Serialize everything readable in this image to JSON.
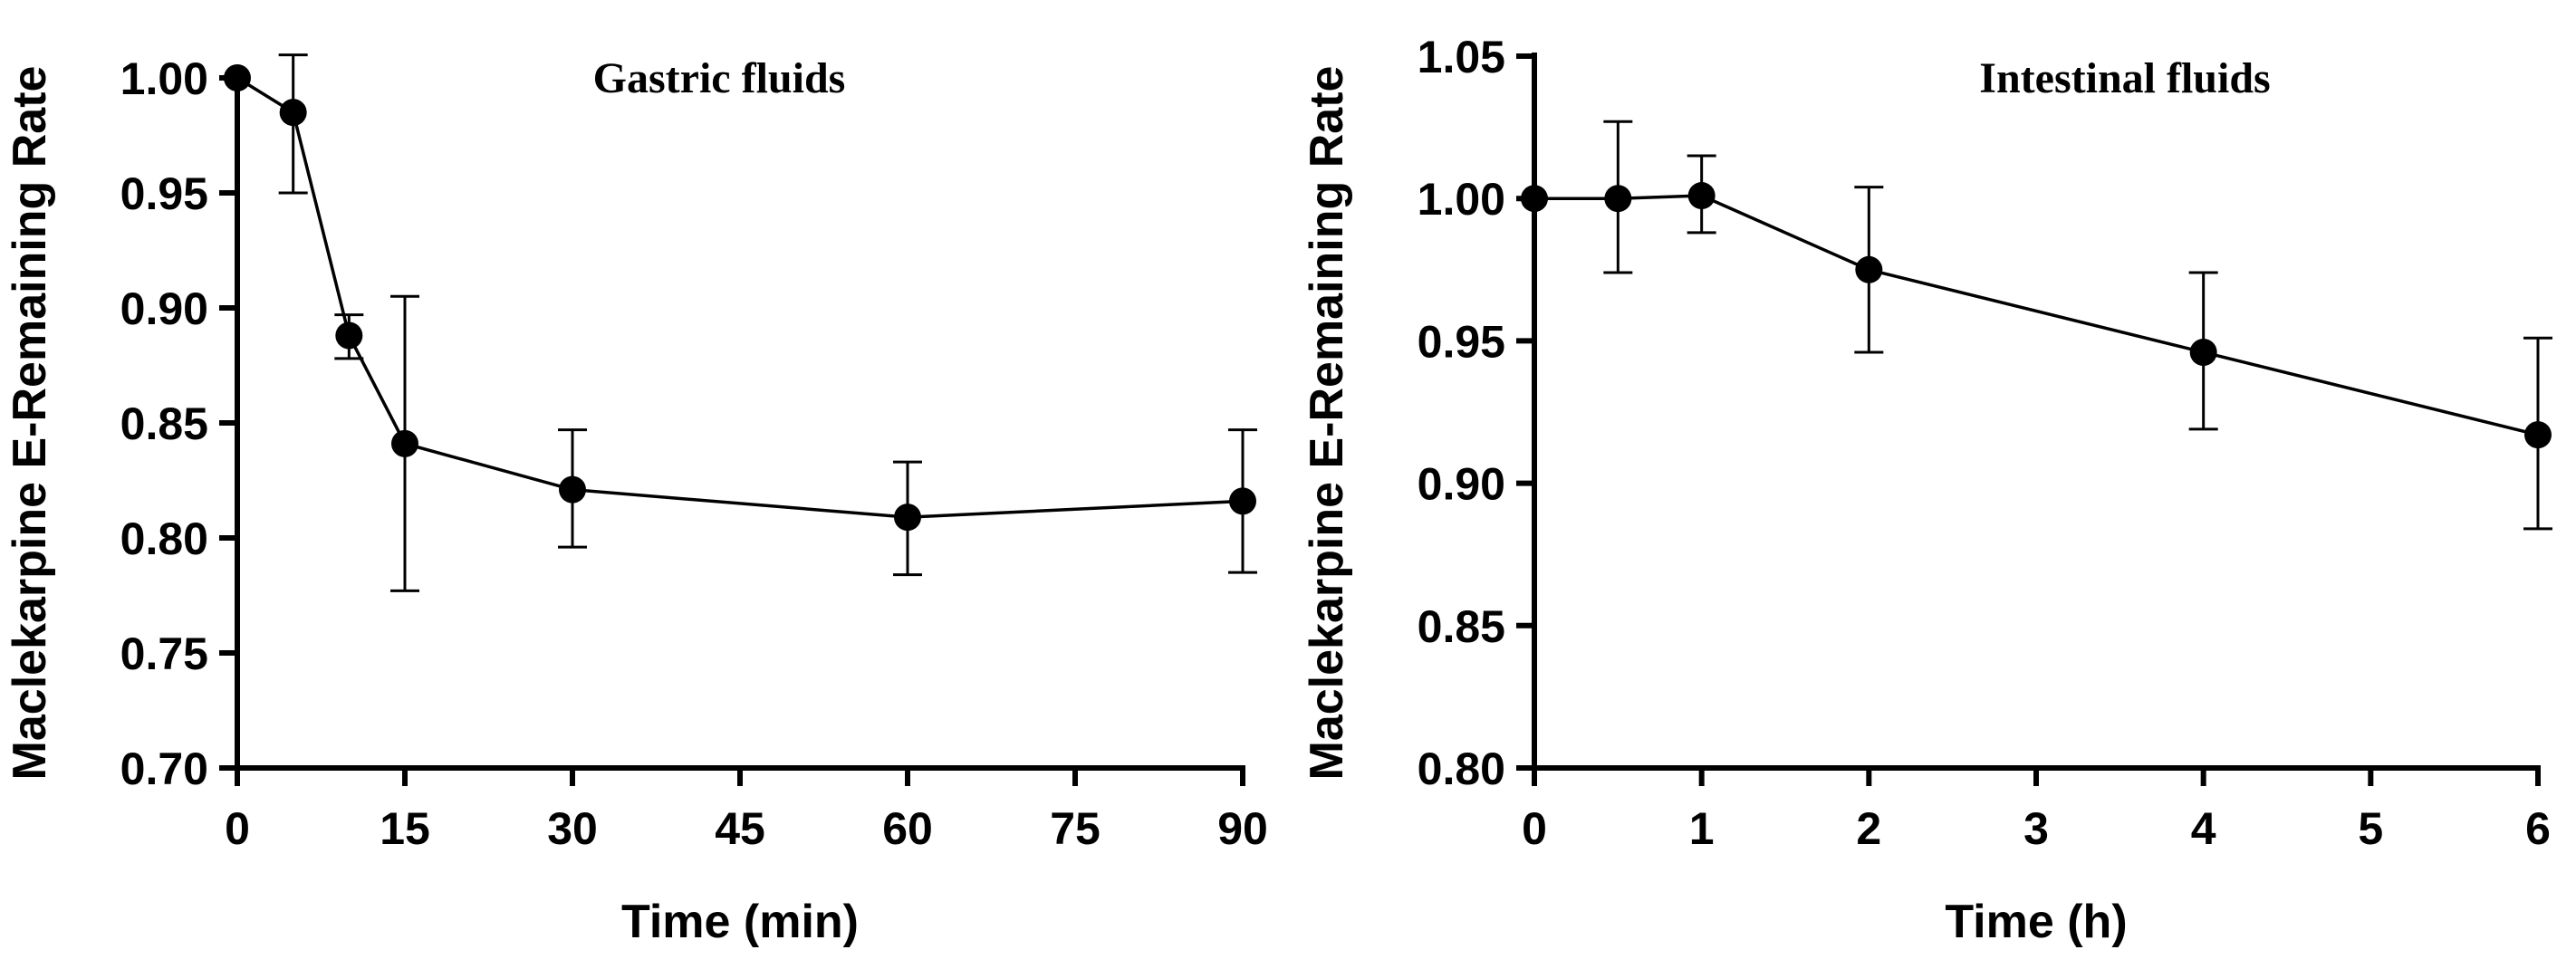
{
  "chart_data": [
    {
      "type": "line",
      "title": "Gastric fluids",
      "xlabel": "Time (min)",
      "ylabel": "Maclekarpine E-Remaining Rate",
      "xlim": [
        0,
        90
      ],
      "ylim": [
        0.7,
        1.0
      ],
      "xticks": [
        0,
        15,
        30,
        45,
        60,
        75,
        90
      ],
      "yticks": [
        0.7,
        0.75,
        0.8,
        0.85,
        0.9,
        0.95,
        1.0
      ],
      "xtick_labels": [
        "0",
        "15",
        "30",
        "45",
        "60",
        "75",
        "90"
      ],
      "ytick_labels": [
        "0.70",
        "0.75",
        "0.80",
        "0.85",
        "0.90",
        "0.95",
        "1.00"
      ],
      "x": [
        0,
        5,
        10,
        15,
        30,
        60,
        90
      ],
      "y": [
        1.0,
        0.985,
        0.888,
        0.841,
        0.821,
        0.809,
        0.816
      ],
      "error_upper": [
        1.0,
        1.01,
        0.897,
        0.905,
        0.847,
        0.833,
        0.847
      ],
      "error_lower": [
        1.0,
        0.95,
        0.878,
        0.777,
        0.796,
        0.784,
        0.785
      ]
    },
    {
      "type": "line",
      "title": "Intestinal fluids",
      "xlabel": "Time (h)",
      "ylabel": "Maclekarpine E-Remaining Rate",
      "xlim": [
        0,
        6
      ],
      "ylim": [
        0.8,
        1.05
      ],
      "xticks": [
        0,
        1,
        2,
        3,
        4,
        5,
        6
      ],
      "yticks": [
        0.8,
        0.85,
        0.9,
        0.95,
        1.0,
        1.05
      ],
      "xtick_labels": [
        "0",
        "1",
        "2",
        "3",
        "4",
        "5",
        "6"
      ],
      "ytick_labels": [
        "0.80",
        "0.85",
        "0.90",
        "0.95",
        "1.00",
        "1.05"
      ],
      "x": [
        0,
        0.5,
        1,
        2,
        4,
        6
      ],
      "y": [
        1.0,
        1.0,
        1.001,
        0.975,
        0.946,
        0.917
      ],
      "error_upper": [
        1.0,
        1.027,
        1.015,
        1.004,
        0.974,
        0.951
      ],
      "error_lower": [
        1.0,
        0.974,
        0.988,
        0.946,
        0.919,
        0.884
      ]
    }
  ]
}
